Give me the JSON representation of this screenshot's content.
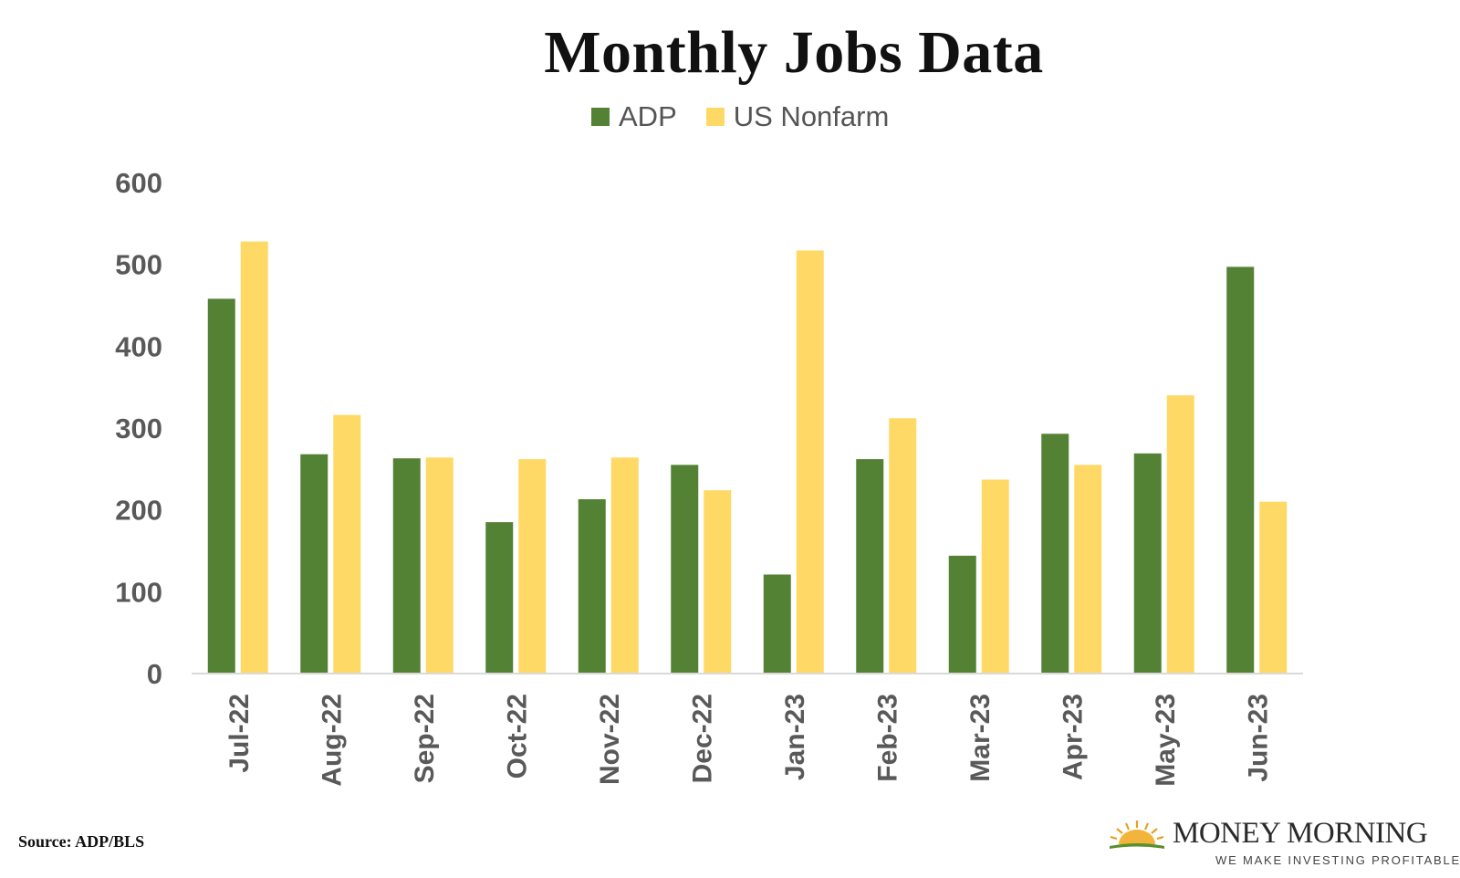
{
  "colors": {
    "adp": "#548235",
    "nonfarm": "#FFD966",
    "axis_text": "#595959",
    "grid": "#d9d9d9"
  },
  "chart_data": {
    "type": "bar",
    "title": "Monthly Jobs Data",
    "categories": [
      "Jul-22",
      "Aug-22",
      "Sep-22",
      "Oct-22",
      "Nov-22",
      "Dec-22",
      "Jan-23",
      "Feb-23",
      "Mar-23",
      "Apr-23",
      "May-23",
      "Jun-23"
    ],
    "series": [
      {
        "name": "ADP",
        "values": [
          458,
          268,
          263,
          185,
          213,
          255,
          121,
          262,
          144,
          293,
          269,
          497
        ]
      },
      {
        "name": "US Nonfarm",
        "values": [
          528,
          316,
          264,
          262,
          264,
          224,
          517,
          312,
          237,
          255,
          340,
          210
        ]
      }
    ],
    "ylim": [
      0,
      600
    ],
    "yticks": [
      "0",
      "100",
      "200",
      "300",
      "400",
      "500",
      "600"
    ],
    "xlabel": "",
    "ylabel": "",
    "legend_position": "top-center",
    "grid": false
  },
  "footer": {
    "source": "Source: ADP/BLS",
    "brand_name": "MONEY MORNING",
    "brand_tagline": "WE MAKE INVESTING PROFITABLE"
  }
}
